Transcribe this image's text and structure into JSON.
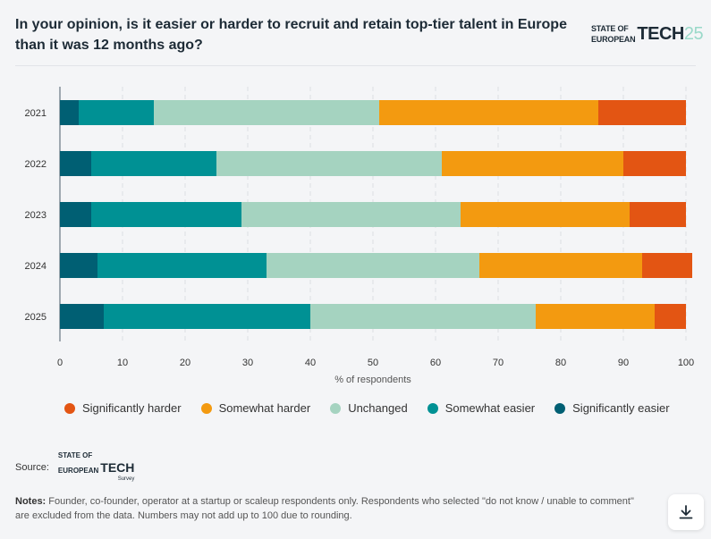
{
  "header": {
    "title": "In your opinion, is it easier or harder to recruit and retain top-tier talent in Europe than it was 12 months ago?",
    "logo": {
      "line1": "STATE OF",
      "line2": "EUROPEAN",
      "brand": "TECH",
      "year": "25"
    }
  },
  "chart_data": {
    "type": "bar",
    "orientation": "horizontal",
    "stacked": true,
    "categories": [
      "2021",
      "2022",
      "2023",
      "2024",
      "2025"
    ],
    "xlabel": "% of respondents",
    "xlim": [
      0,
      100
    ],
    "xticks": [
      0,
      10,
      20,
      30,
      40,
      50,
      60,
      70,
      80,
      90,
      100
    ],
    "grid": true,
    "legend_placement": "bottom",
    "series": [
      {
        "name": "Significantly easier",
        "color": "#005f73",
        "values": [
          3,
          5,
          5,
          6,
          7
        ]
      },
      {
        "name": "Somewhat easier",
        "color": "#009194",
        "values": [
          12,
          20,
          24,
          27,
          33
        ]
      },
      {
        "name": "Unchanged",
        "color": "#a5d3c0",
        "values": [
          36,
          36,
          35,
          34,
          36
        ]
      },
      {
        "name": "Somewhat harder",
        "color": "#f39a10",
        "values": [
          35,
          29,
          27,
          26,
          19
        ]
      },
      {
        "name": "Significantly harder",
        "color": "#e35513",
        "values": [
          14,
          10,
          9,
          8,
          5
        ]
      }
    ],
    "legend_order": [
      "Significantly harder",
      "Somewhat harder",
      "Unchanged",
      "Somewhat easier",
      "Significantly easier"
    ]
  },
  "footer": {
    "source_label": "Source:",
    "source_logo": {
      "line1": "STATE OF",
      "line2": "EUROPEAN",
      "brand": "TECH",
      "sub": "Survey"
    },
    "notes_label": "Notes:",
    "notes_text": "Founder, co-founder, operator at a startup or scaleup respondents only. Respondents who selected \"do not know / unable to comment\" are excluded from the data. Numbers may not add up to 100 due to rounding.",
    "download_icon": "download-icon"
  }
}
